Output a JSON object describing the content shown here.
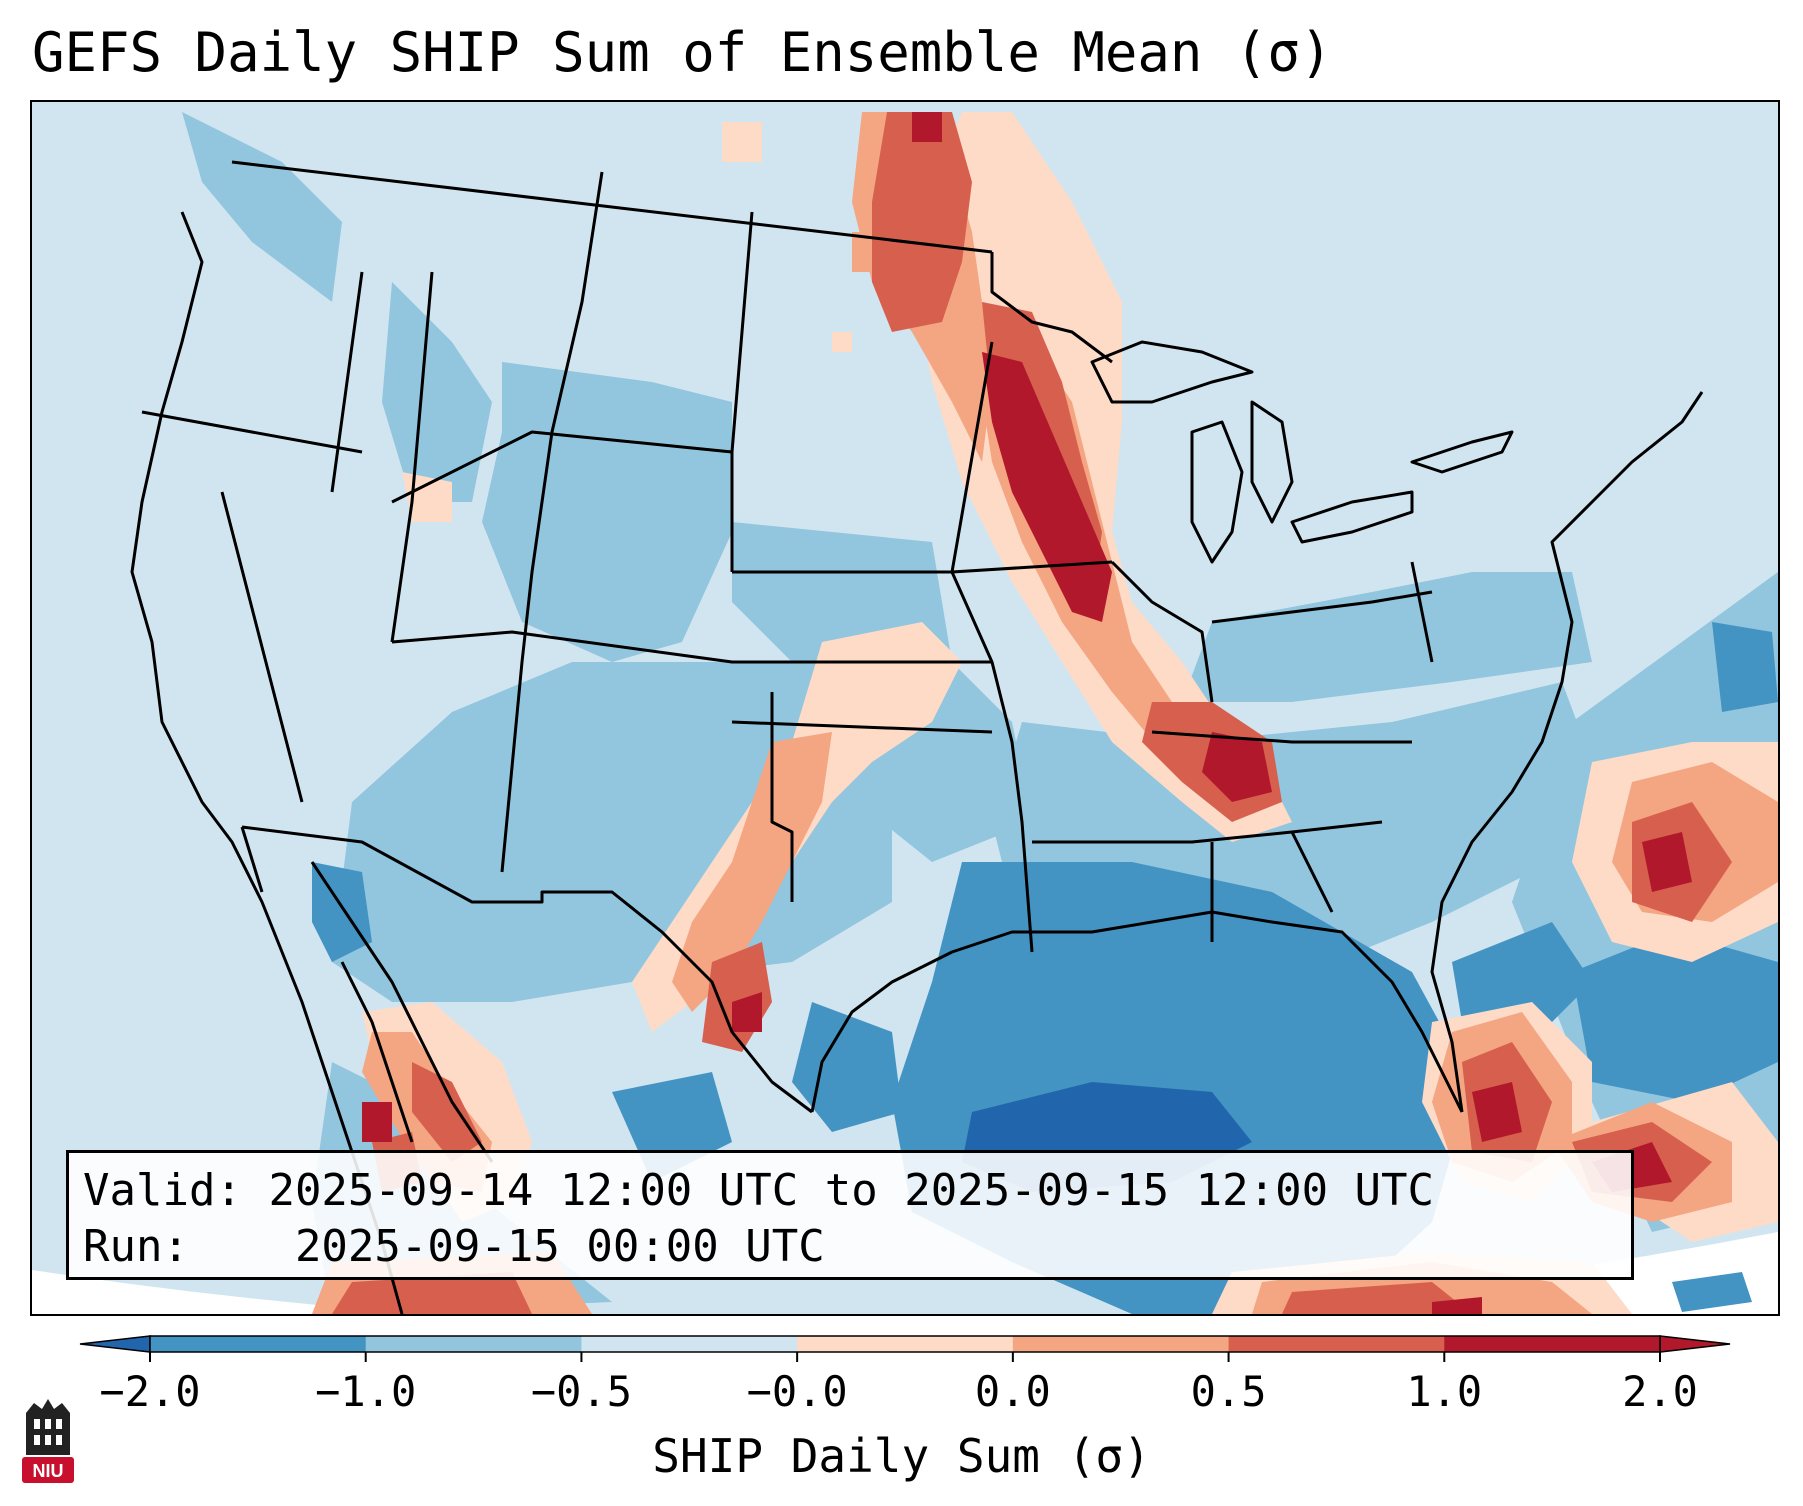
{
  "title": "GEFS Daily SHIP Sum of Ensemble Mean (σ)",
  "info": {
    "valid_label": "Valid:",
    "valid_value": "2025-09-14 12:00 UTC to 2025-09-15 12:00 UTC",
    "run_label": "Run:",
    "run_value": "2025-09-15 00:00 UTC"
  },
  "colorbar": {
    "label": "SHIP Daily Sum (σ)",
    "ticks": [
      "−2.0",
      "−1.0",
      "−0.5",
      "−0.0",
      "0.0",
      "0.5",
      "1.0",
      "2.0"
    ],
    "colors": [
      "#4393c3",
      "#92c5de",
      "#d1e5f0",
      "#fddbc7",
      "#f4a582",
      "#d6604d",
      "#b2182b"
    ],
    "under_color": "#2166ac",
    "over_color": "#b2182b"
  },
  "map": {
    "background_color": "#d1e5f0",
    "boundary_color": "#000000"
  },
  "logo": {
    "name": "NIU",
    "color": "#c8102e"
  }
}
